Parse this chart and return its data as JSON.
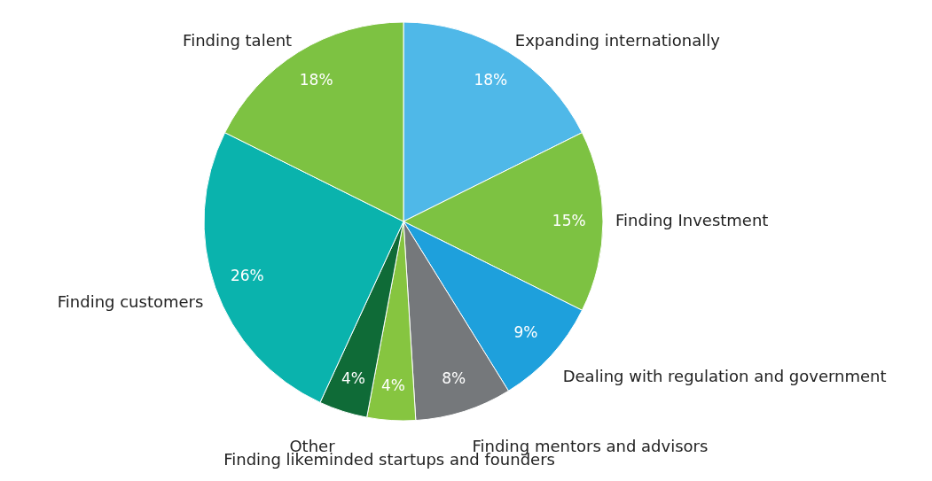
{
  "chart_data": {
    "type": "pie",
    "categories": [
      "Expanding internationally",
      "Finding Investment",
      "Dealing with regulation and government",
      "Finding mentors and advisors",
      "Finding likeminded startups and founders",
      "Other",
      "Finding customers",
      "Finding talent"
    ],
    "values": [
      18,
      15,
      9,
      8,
      4,
      4,
      26,
      18
    ],
    "colors": [
      "#4fb8e8",
      "#7dc242",
      "#1ea0dc",
      "#75787b",
      "#86c540",
      "#0f6b37",
      "#0ab3ad",
      "#7dc242"
    ],
    "value_labels": [
      "18%",
      "15%",
      "9%",
      "8%",
      "4%",
      "4%",
      "26%",
      "18%"
    ]
  }
}
